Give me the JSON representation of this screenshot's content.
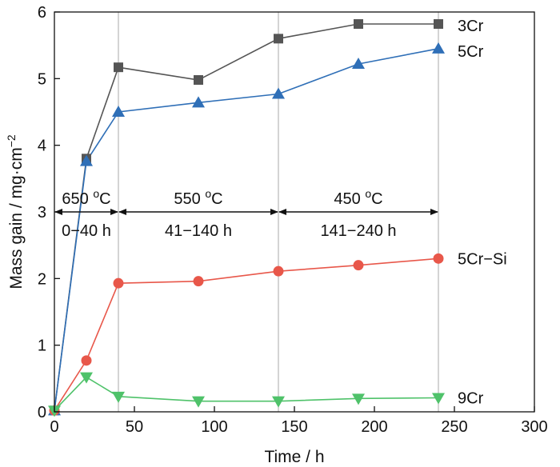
{
  "chart_data": {
    "type": "line",
    "xlabel": "Time / h",
    "ylabel": "Mass gain / mg·cm",
    "ylabel_exponent": "−2",
    "xlim": [
      0,
      300
    ],
    "ylim": [
      0,
      6
    ],
    "xticks": [
      0,
      50,
      100,
      150,
      200,
      250,
      300
    ],
    "yticks": [
      0,
      1,
      2,
      3,
      4,
      5,
      6
    ],
    "vertical_lines": [
      40,
      140,
      240
    ],
    "series": [
      {
        "name": "3Cr",
        "color": "#555555",
        "marker": "square",
        "x": [
          0,
          20,
          40,
          90,
          140,
          190,
          240
        ],
        "y": [
          0.02,
          3.8,
          5.17,
          4.98,
          5.6,
          5.82,
          5.82
        ]
      },
      {
        "name": "5Cr",
        "color": "#2f6fb7",
        "marker": "triangle-up",
        "x": [
          0,
          20,
          40,
          90,
          140,
          190,
          240
        ],
        "y": [
          0.02,
          3.76,
          4.5,
          4.64,
          4.77,
          5.22,
          5.45
        ]
      },
      {
        "name": "5Cr−Si",
        "color": "#e8574a",
        "marker": "circle",
        "x": [
          0,
          20,
          40,
          90,
          140,
          190,
          240
        ],
        "y": [
          0.02,
          0.77,
          1.93,
          1.96,
          2.11,
          2.2,
          2.3
        ]
      },
      {
        "name": "9Cr",
        "color": "#4fc26a",
        "marker": "triangle-down",
        "x": [
          0,
          20,
          40,
          90,
          140,
          190,
          240
        ],
        "y": [
          0.02,
          0.52,
          0.23,
          0.16,
          0.16,
          0.2,
          0.21
        ]
      }
    ],
    "annotations": [
      {
        "temperature": "650 ",
        "temp_sup": "o",
        "temp_unit": "C",
        "range": "0−40 h",
        "x_start": 0,
        "x_end": 40
      },
      {
        "temperature": "550 ",
        "temp_sup": "o",
        "temp_unit": "C",
        "range": "41−140 h",
        "x_start": 40,
        "x_end": 140
      },
      {
        "temperature": "450 ",
        "temp_sup": "o",
        "temp_unit": "C",
        "range": "141−240 h",
        "x_start": 140,
        "x_end": 240
      }
    ],
    "annotation_arrow_y": 3,
    "legend": "right-of-line-ends"
  }
}
